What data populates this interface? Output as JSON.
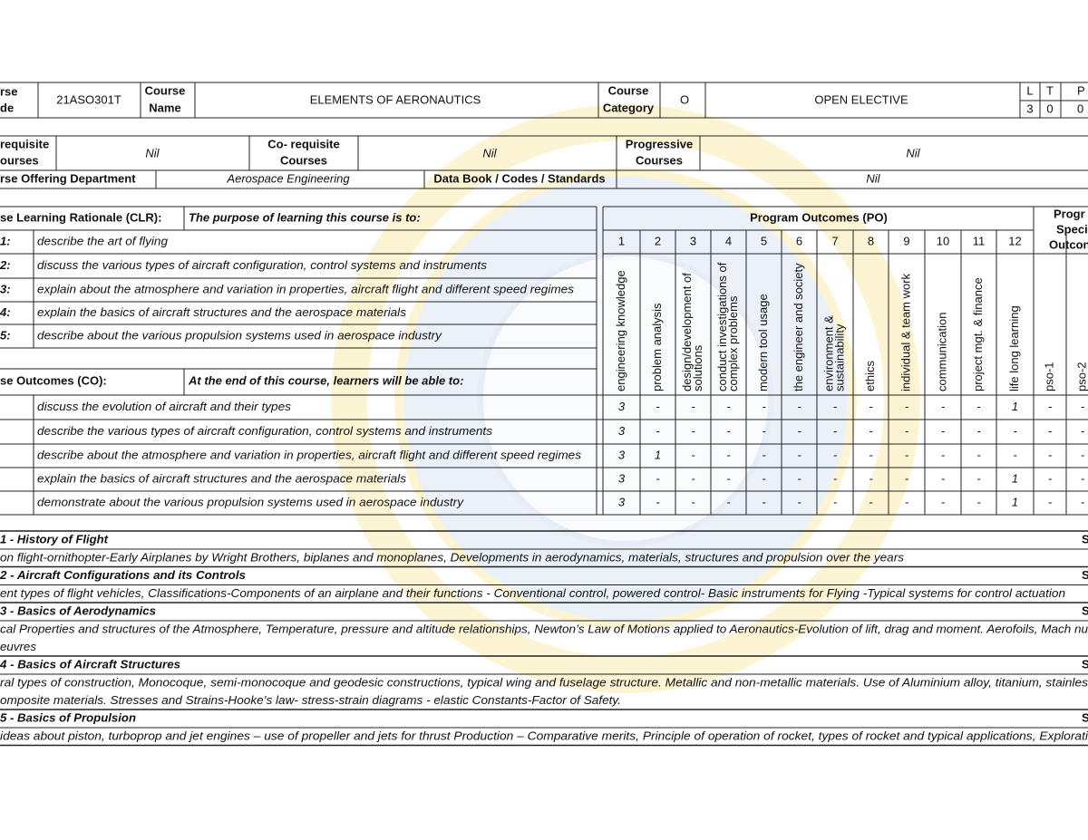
{
  "header": {
    "course_code_label": [
      "rse",
      "de"
    ],
    "course_code": "21ASO301T",
    "course_name_label": [
      "Course",
      "Name"
    ],
    "course_name": "ELEMENTS OF AERONAUTICS",
    "course_category_label": [
      "Course",
      "Category"
    ],
    "course_category": "O",
    "category_name": "OPEN ELECTIVE",
    "ltp_labels": [
      "L",
      "T",
      "P"
    ],
    "ltp_values": [
      "3",
      "0",
      "0"
    ]
  },
  "requisites": {
    "pre_label": [
      "requisite",
      "ourses"
    ],
    "pre_value": "Nil",
    "co_label": [
      "Co- requisite",
      "Courses"
    ],
    "co_value": "Nil",
    "progressive_label": [
      "Progressive",
      "Courses"
    ],
    "progressive_value": "Nil",
    "department_label": "rse Offering Department",
    "department": "Aerospace Engineering",
    "databook_label": "Data Book / Codes / Standards",
    "databook": "Nil"
  },
  "clr": {
    "title": "se Learning Rationale (CLR):",
    "intro": "The purpose of learning this course is to:",
    "rows": [
      {
        "label": "1:",
        "text": "describe the art of flying"
      },
      {
        "label": "2:",
        "text": "discuss the various types of aircraft configuration, control systems and instruments"
      },
      {
        "label": "3:",
        "text": "explain about the atmosphere and variation in properties, aircraft flight and different speed regimes"
      },
      {
        "label": "4:",
        "text": "explain the basics of aircraft structures and the aerospace materials"
      },
      {
        "label": "5:",
        "text": "describe about the various propulsion systems used in aerospace industry"
      }
    ]
  },
  "co": {
    "title": "se Outcomes (CO):",
    "intro": "At the end of this course, learners will be able to:",
    "rows": [
      {
        "text": "discuss the evolution of aircraft and their types",
        "scores": [
          "3",
          "-",
          "-",
          "-",
          "-",
          "-",
          "-",
          "-",
          "-",
          "-",
          "-",
          "1",
          "-",
          "-"
        ]
      },
      {
        "text": "describe the various types of aircraft configuration, control systems and instruments",
        "scores": [
          "3",
          "-",
          "-",
          "-",
          "-",
          "-",
          "-",
          "-",
          "-",
          "-",
          "-",
          "-",
          "-",
          "-"
        ]
      },
      {
        "text": "describe about the atmosphere and variation in properties, aircraft flight and different speed regimes",
        "scores": [
          "3",
          "1",
          "-",
          "-",
          "-",
          "-",
          "-",
          "-",
          "-",
          "-",
          "-",
          "-",
          "-",
          "-"
        ]
      },
      {
        "text": "explain the basics of aircraft structures and the aerospace materials",
        "scores": [
          "3",
          "-",
          "-",
          "-",
          "-",
          "-",
          "-",
          "-",
          "-",
          "-",
          "-",
          "1",
          "-",
          "-"
        ]
      },
      {
        "text": "demonstrate about the various propulsion systems used in aerospace industry",
        "scores": [
          "3",
          "-",
          "-",
          "-",
          "-",
          "-",
          "-",
          "-",
          "-",
          "-",
          "-",
          "1",
          "-",
          "-"
        ]
      }
    ]
  },
  "program_outcomes": {
    "title": "Program Outcomes (PO)",
    "numbers": [
      "1",
      "2",
      "3",
      "4",
      "5",
      "6",
      "7",
      "8",
      "9",
      "10",
      "11",
      "12"
    ],
    "pso_title": [
      "Progr",
      "Speci",
      "Outcon"
    ],
    "labels": [
      [
        "engineering knowledge"
      ],
      [
        "problem analysis"
      ],
      [
        "design/development of",
        "solutions"
      ],
      [
        "conduct investigations of",
        "complex problems"
      ],
      [
        "modern tool usage"
      ],
      [
        "the engineer and society"
      ],
      [
        "environment &",
        "sustainability"
      ],
      [
        "ethics"
      ],
      [
        "individual & team work"
      ],
      [
        "communication"
      ],
      [
        "project mgt. & finance"
      ],
      [
        "life long learning"
      ],
      [
        "pso-1"
      ],
      [
        "pso-2"
      ]
    ]
  },
  "units": [
    {
      "title": "1 - History of Flight",
      "side": "S",
      "lines": [
        "on flight-ornithopter-Early Airplanes by Wright Brothers, biplanes and monoplanes, Developments in aerodynamics, materials, structures and propulsion over the years"
      ]
    },
    {
      "title": "2 - Aircraft Configurations and its Controls",
      "side": "S",
      "lines": [
        "ent types of flight vehicles, Classifications-Components of an airplane and their functions - Conventional control, powered control- Basic instruments for Flying -Typical systems for control actuation"
      ]
    },
    {
      "title": "3 - Basics of Aerodynamics",
      "side": "S",
      "lines": [
        "cal Properties and structures of the Atmosphere, Temperature, pressure and altitude relationships, Newton’s Law of Motions applied to Aeronautics-Evolution of lift, drag and moment. Aerofoils, Mach nu",
        "euvres"
      ]
    },
    {
      "title": "4 - Basics of Aircraft Structures",
      "side": "S",
      "lines": [
        "ral types of construction, Monocoque, semi-monocoque and geodesic constructions, typical wing and fuselage structure. Metallic and non-metallic materials. Use of Aluminium alloy, titanium, stainles",
        "omposite materials. Stresses and Strains-Hooke’s law- stress-strain diagrams - elastic Constants-Factor of Safety."
      ]
    },
    {
      "title": "5 - Basics of Propulsion",
      "side": "S",
      "lines": [
        " ideas about piston, turboprop and jet engines – use of propeller and jets for thrust Production – Comparative merits, Principle of operation of rocket, types of rocket and typical applications, Explorati"
      ]
    }
  ]
}
